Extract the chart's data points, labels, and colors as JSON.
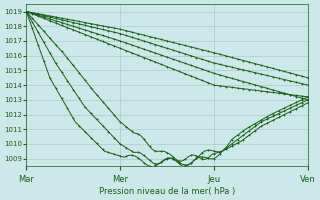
{
  "xlabel": "Pression niveau de la mer( hPa )",
  "xtick_labels": [
    "Mar",
    "Mer",
    "Jeu",
    "Ven"
  ],
  "xtick_positions": [
    0,
    48,
    96,
    144
  ],
  "ylim": [
    1008.5,
    1019.5
  ],
  "yticks": [
    1009,
    1010,
    1011,
    1012,
    1013,
    1014,
    1015,
    1016,
    1017,
    1018,
    1019
  ],
  "bg_color": "#cce8e8",
  "grid_color": "#aacccc",
  "line_color": "#1a5c1a",
  "n_points": 145,
  "figsize": [
    3.2,
    2.0
  ],
  "dpi": 100
}
